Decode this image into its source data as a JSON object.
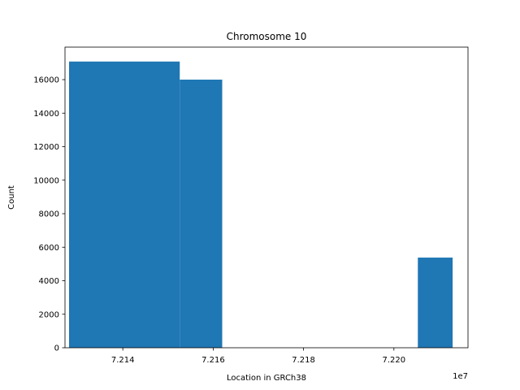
{
  "chart_data": {
    "type": "bar",
    "title": "Chromosome 10",
    "xlabel": "Location in GRCh38",
    "ylabel": "Count",
    "x_offset_label": "1e7",
    "bar_color": "#1f77b4",
    "xlim": [
      7.21272,
      7.22164
    ],
    "ylim": [
      0,
      17940
    ],
    "x_ticks": [
      7.214,
      7.216,
      7.218,
      7.22
    ],
    "x_tick_labels": [
      "7.214",
      "7.216",
      "7.218",
      "7.220"
    ],
    "y_ticks": [
      0,
      2000,
      4000,
      6000,
      8000,
      10000,
      12000,
      14000,
      16000
    ],
    "y_tick_labels": [
      "0",
      "2000",
      "4000",
      "6000",
      "8000",
      "10000",
      "12000",
      "14000",
      "16000"
    ],
    "bins": [
      {
        "x0": 7.21281,
        "x1": 7.21526,
        "count": 17080
      },
      {
        "x0": 7.21526,
        "x1": 7.2162,
        "count": 16000
      },
      {
        "x0": 7.22053,
        "x1": 7.2213,
        "count": 5380
      }
    ],
    "grid": false,
    "legend": false
  }
}
